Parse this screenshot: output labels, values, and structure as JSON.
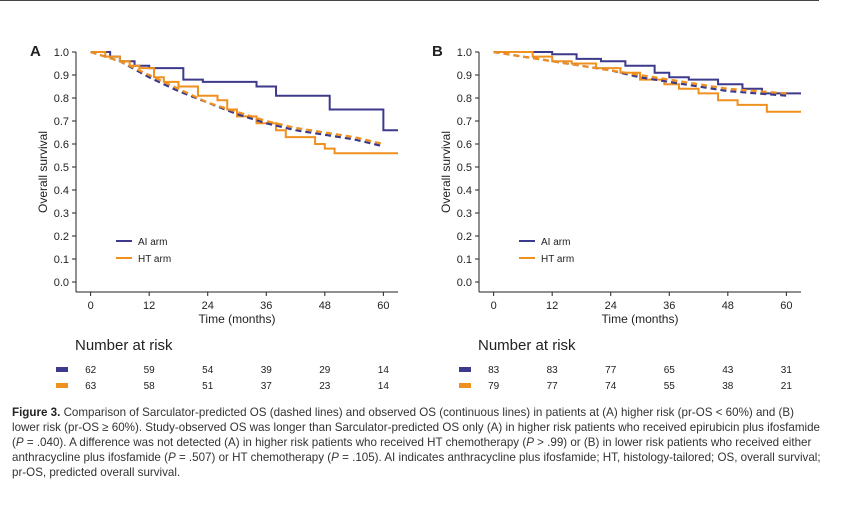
{
  "figure": {
    "caption_label": "Figure 3.",
    "caption_text": "Comparison of Sarculator-predicted OS (dashed lines) and observed OS (continuous lines) in patients at (A) higher risk (pr-OS < 60%) and (B) lower risk (pr-OS ≥ 60%). Study-observed OS was longer than Sarculator-predicted OS only (A) in higher risk patients who received epirubicin plus ifosfamide (P = .040). A difference was not detected (A) in higher risk patients who received HT chemotherapy (P > .99) or (B) in lower risk patients who received either anthracycline plus ifosfamide (P = .507) or HT chemotherapy (P = .105). AI indicates anthracycline plus ifosfamide; HT, histology-tailored; OS, overall survival; pr-OS, predicted overall survival."
  },
  "colors": {
    "ai": "#3d3a8c",
    "ht": "#f0901e",
    "axis": "#222222"
  },
  "chart_data": [
    {
      "type": "line",
      "panel": "A",
      "xlabel": "Time (months)",
      "ylabel": "Overall survival",
      "xlim": [
        -3,
        63
      ],
      "ylim": [
        0,
        1
      ],
      "xticks": [
        0,
        12,
        24,
        36,
        48,
        60
      ],
      "yticks": [
        0.0,
        0.1,
        0.2,
        0.3,
        0.4,
        0.5,
        0.6,
        0.7,
        0.8,
        0.9,
        1.0
      ],
      "legend": [
        {
          "name": "AI arm",
          "key": "ai"
        },
        {
          "name": "HT arm",
          "key": "ht"
        }
      ],
      "series": [
        {
          "name": "AI arm observed",
          "key": "ai",
          "style": "step",
          "x": [
            0,
            4,
            6,
            9,
            12,
            19,
            23,
            34,
            38,
            49,
            60,
            63
          ],
          "y": [
            1.0,
            0.98,
            0.96,
            0.94,
            0.93,
            0.88,
            0.87,
            0.85,
            0.81,
            0.75,
            0.66,
            0.66
          ]
        },
        {
          "name": "HT arm observed",
          "key": "ht",
          "style": "step",
          "x": [
            0,
            3,
            6,
            8,
            10,
            13,
            15,
            18,
            22,
            26,
            28,
            30,
            34,
            38,
            40,
            46,
            48,
            50,
            63
          ],
          "y": [
            1.0,
            0.98,
            0.96,
            0.94,
            0.93,
            0.89,
            0.87,
            0.85,
            0.81,
            0.79,
            0.75,
            0.72,
            0.69,
            0.66,
            0.63,
            0.6,
            0.58,
            0.56,
            0.56
          ]
        },
        {
          "name": "AI arm predicted",
          "key": "ai",
          "style": "dashed",
          "x": [
            0,
            6,
            12,
            18,
            24,
            30,
            36,
            42,
            48,
            54,
            60
          ],
          "y": [
            1.0,
            0.96,
            0.89,
            0.83,
            0.78,
            0.73,
            0.69,
            0.66,
            0.64,
            0.62,
            0.59
          ]
        },
        {
          "name": "HT arm predicted",
          "key": "ht",
          "style": "dashed",
          "x": [
            0,
            6,
            12,
            18,
            24,
            30,
            36,
            42,
            48,
            54,
            60
          ],
          "y": [
            1.0,
            0.96,
            0.9,
            0.84,
            0.78,
            0.74,
            0.7,
            0.67,
            0.65,
            0.63,
            0.6
          ]
        }
      ],
      "risk_title": "Number at risk",
      "risk": {
        "ai": [
          62,
          59,
          54,
          39,
          29,
          14
        ],
        "ht": [
          63,
          58,
          51,
          37,
          23,
          14
        ]
      }
    },
    {
      "type": "line",
      "panel": "B",
      "xlabel": "Time (months)",
      "ylabel": "Overall survival",
      "xlim": [
        -3,
        63
      ],
      "ylim": [
        0,
        1
      ],
      "xticks": [
        0,
        12,
        24,
        36,
        48,
        60
      ],
      "yticks": [
        0.0,
        0.1,
        0.2,
        0.3,
        0.4,
        0.5,
        0.6,
        0.7,
        0.8,
        0.9,
        1.0
      ],
      "legend": [
        {
          "name": "AI arm",
          "key": "ai"
        },
        {
          "name": "HT arm",
          "key": "ht"
        }
      ],
      "series": [
        {
          "name": "AI arm observed",
          "key": "ai",
          "style": "step",
          "x": [
            0,
            12,
            17,
            22,
            27,
            33,
            36,
            40,
            46,
            51,
            55,
            63
          ],
          "y": [
            1.0,
            0.99,
            0.97,
            0.96,
            0.94,
            0.91,
            0.89,
            0.88,
            0.86,
            0.84,
            0.82,
            0.82
          ]
        },
        {
          "name": "HT arm observed",
          "key": "ht",
          "style": "step",
          "x": [
            0,
            8,
            12,
            16,
            21,
            26,
            30,
            35,
            38,
            42,
            46,
            50,
            56,
            63
          ],
          "y": [
            1.0,
            0.98,
            0.96,
            0.95,
            0.93,
            0.91,
            0.88,
            0.86,
            0.84,
            0.82,
            0.79,
            0.77,
            0.74,
            0.74
          ]
        },
        {
          "name": "AI arm predicted",
          "key": "ai",
          "style": "dashed",
          "x": [
            0,
            6,
            12,
            18,
            24,
            30,
            36,
            42,
            48,
            54,
            60
          ],
          "y": [
            1.0,
            0.98,
            0.96,
            0.94,
            0.92,
            0.89,
            0.87,
            0.85,
            0.83,
            0.82,
            0.81
          ]
        },
        {
          "name": "HT arm predicted",
          "key": "ht",
          "style": "dashed",
          "x": [
            0,
            6,
            12,
            18,
            24,
            30,
            36,
            42,
            48,
            54,
            60
          ],
          "y": [
            1.0,
            0.98,
            0.96,
            0.94,
            0.92,
            0.9,
            0.88,
            0.86,
            0.84,
            0.83,
            0.82
          ]
        }
      ],
      "risk_title": "Number at risk",
      "risk": {
        "ai": [
          83,
          83,
          77,
          65,
          43,
          31
        ],
        "ht": [
          79,
          77,
          74,
          55,
          38,
          21
        ]
      }
    }
  ]
}
